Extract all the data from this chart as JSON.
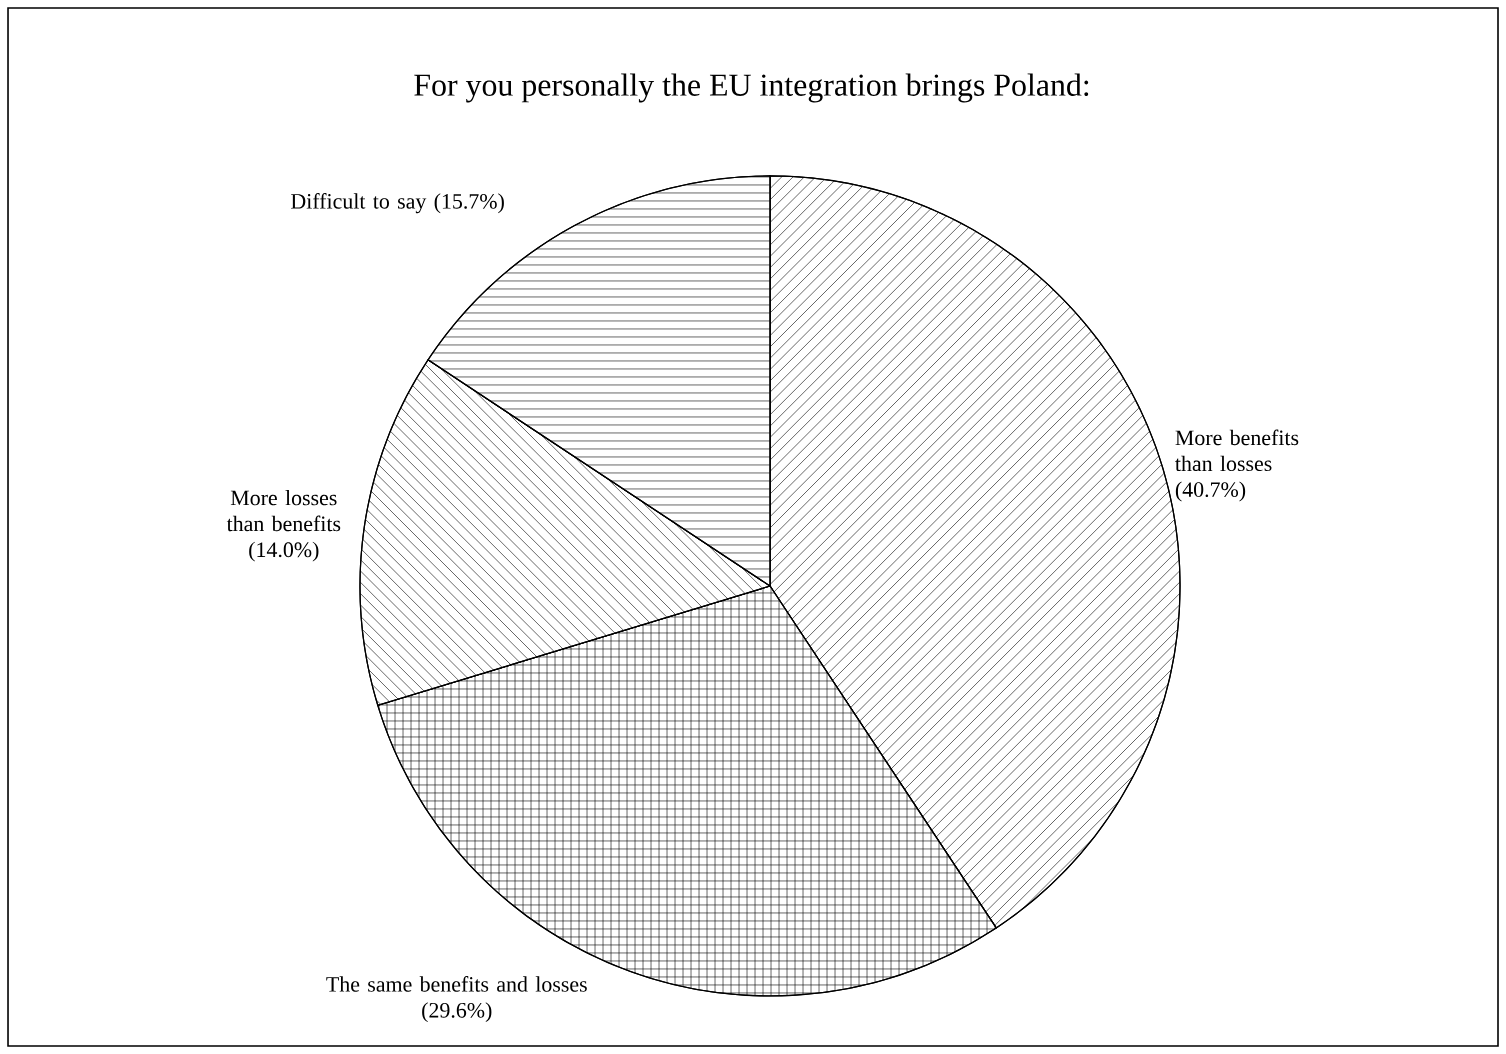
{
  "chart_data": {
    "type": "pie",
    "title": "For you personally the EU integration brings Poland:",
    "categories": [
      "More benefits than losses",
      "The same benefits and losses",
      "More losses than benefits",
      "Difficult to say"
    ],
    "values": [
      40.7,
      29.6,
      14.0,
      15.7
    ],
    "value_labels": [
      "(40.7%)",
      "(29.6%)",
      "(14.0%)",
      "(15.7%)"
    ],
    "colors": [
      "#ffffff",
      "#ffffff",
      "#ffffff",
      "#ffffff"
    ]
  }
}
